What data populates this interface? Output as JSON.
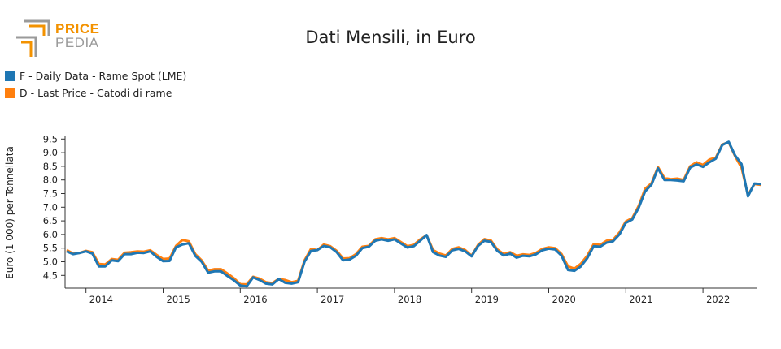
{
  "logo": {
    "line1": "PRICE",
    "line2": "PEDIA",
    "colors": [
      "#f39200",
      "#9a9a9a"
    ]
  },
  "chart_data": {
    "type": "line",
    "title": "Dati Mensili, in Euro",
    "ylabel": "Euro (1 000) per Tonnellata",
    "xlabel": "",
    "x_start": "2013-10",
    "ylim": [
      4.0,
      9.6
    ],
    "yticks": [
      "9.5",
      "9.0",
      "8.5",
      "8.0",
      "7.5",
      "7.0",
      "6.5",
      "6.0",
      "5.5",
      "5.0",
      "4.5"
    ],
    "xticks": [
      "2014",
      "2015",
      "2016",
      "2017",
      "2018",
      "2019",
      "2020",
      "2021",
      "2022"
    ],
    "grid": false,
    "legend_position": "top-left",
    "series": [
      {
        "name": "F - Daily Data - Rame Spot (LME)",
        "color": "#1f77b4",
        "values": [
          5.38,
          5.28,
          5.32,
          5.38,
          5.3,
          4.83,
          4.83,
          5.05,
          5.02,
          5.28,
          5.28,
          5.33,
          5.32,
          5.38,
          5.18,
          5.02,
          5.03,
          5.53,
          5.63,
          5.68,
          5.22,
          5.0,
          4.6,
          4.65,
          4.65,
          4.48,
          4.32,
          4.13,
          4.1,
          4.43,
          4.33,
          4.2,
          4.17,
          4.37,
          4.23,
          4.2,
          4.25,
          5.0,
          5.4,
          5.43,
          5.58,
          5.53,
          5.35,
          5.05,
          5.08,
          5.22,
          5.5,
          5.55,
          5.77,
          5.82,
          5.77,
          5.82,
          5.67,
          5.52,
          5.57,
          5.77,
          5.98,
          5.35,
          5.23,
          5.18,
          5.42,
          5.47,
          5.38,
          5.2,
          5.58,
          5.77,
          5.73,
          5.4,
          5.23,
          5.3,
          5.15,
          5.22,
          5.2,
          5.27,
          5.42,
          5.48,
          5.45,
          5.22,
          4.7,
          4.67,
          4.83,
          5.13,
          5.57,
          5.55,
          5.7,
          5.75,
          6.0,
          6.43,
          6.55,
          6.98,
          7.58,
          7.83,
          8.43,
          8.0,
          8.0,
          7.98,
          7.95,
          8.45,
          8.57,
          8.48,
          8.65,
          8.78,
          9.28,
          9.4,
          8.9,
          8.58,
          7.4,
          7.87,
          7.85
        ]
      },
      {
        "name": "D - Last Price - Catodi di rame",
        "color": "#ff7f0e",
        "values": [
          5.43,
          5.3,
          5.32,
          5.4,
          5.35,
          4.92,
          4.9,
          5.1,
          5.07,
          5.33,
          5.35,
          5.38,
          5.37,
          5.42,
          5.25,
          5.1,
          5.12,
          5.58,
          5.8,
          5.75,
          5.28,
          5.05,
          4.68,
          4.73,
          4.73,
          4.57,
          4.4,
          4.18,
          4.17,
          4.45,
          4.38,
          4.25,
          4.22,
          4.37,
          4.33,
          4.25,
          4.3,
          5.05,
          5.47,
          5.43,
          5.63,
          5.57,
          5.4,
          5.12,
          5.13,
          5.28,
          5.55,
          5.58,
          5.82,
          5.87,
          5.82,
          5.87,
          5.72,
          5.57,
          5.62,
          5.82,
          5.97,
          5.43,
          5.3,
          5.23,
          5.47,
          5.53,
          5.43,
          5.22,
          5.62,
          5.83,
          5.78,
          5.45,
          5.28,
          5.35,
          5.22,
          5.27,
          5.25,
          5.32,
          5.47,
          5.53,
          5.5,
          5.28,
          4.83,
          4.75,
          4.93,
          5.22,
          5.65,
          5.62,
          5.77,
          5.8,
          6.07,
          6.48,
          6.6,
          7.05,
          7.68,
          7.88,
          8.47,
          8.07,
          8.03,
          8.05,
          8.0,
          8.5,
          8.65,
          8.55,
          8.75,
          8.82,
          9.3,
          9.38,
          8.87,
          8.45,
          7.45,
          7.85,
          7.82
        ]
      }
    ]
  }
}
